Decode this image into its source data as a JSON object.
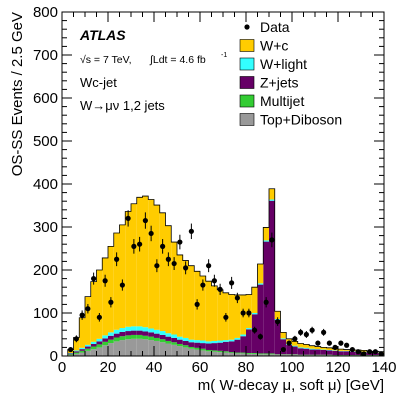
{
  "chart_data": {
    "type": "bar",
    "stacked": true,
    "histogram": true,
    "xlabel": "m( W-decay μ, soft μ) [GeV]",
    "ylabel": "OS-SS Events / 2.5 GeV",
    "xlim": [
      0,
      140
    ],
    "ylim": [
      0,
      800
    ],
    "bin_width": 2.5,
    "x_ticks": [
      "0",
      "20",
      "40",
      "60",
      "80",
      "100",
      "120",
      "140"
    ],
    "y_ticks": [
      "0",
      "100",
      "200",
      "300",
      "400",
      "500",
      "600",
      "700",
      "800"
    ],
    "annotations": {
      "experiment": "ATLAS",
      "energy": "√s = 7 TeV,",
      "lumi": "∫Ldt = 4.6 fb",
      "lumi_exp": "-1",
      "channel": "Wc-jet",
      "selection": "W→μν 1,2 jets"
    },
    "legend_position": "top-right",
    "legend": [
      {
        "label": "Data",
        "kind": "marker",
        "color": "#000000"
      },
      {
        "label": "W+c",
        "kind": "fill",
        "color": "#FFCC00"
      },
      {
        "label": "W+light",
        "kind": "fill",
        "color": "#33FFFF"
      },
      {
        "label": "Z+jets",
        "kind": "fill",
        "color": "#660066"
      },
      {
        "label": "Multijet",
        "kind": "fill",
        "color": "#33CC33"
      },
      {
        "label": "Top+Diboson",
        "kind": "fill",
        "color": "#999999"
      }
    ],
    "bins_low_edge": [
      2.5,
      5,
      7.5,
      10,
      12.5,
      15,
      17.5,
      20,
      22.5,
      25,
      27.5,
      30,
      32.5,
      35,
      37.5,
      40,
      42.5,
      45,
      47.5,
      50,
      52.5,
      55,
      57.5,
      60,
      62.5,
      65,
      67.5,
      70,
      72.5,
      75,
      77.5,
      80,
      82.5,
      85,
      87.5,
      90,
      92.5,
      95,
      97.5,
      100,
      102.5,
      105,
      107.5,
      110,
      112.5,
      115,
      117.5,
      120,
      122.5,
      125,
      127.5,
      130,
      132.5,
      135,
      137.5
    ],
    "series": [
      {
        "name": "Top+Diboson",
        "color": "#999999",
        "values": [
          2,
          5,
          8,
          12,
          16,
          20,
          25,
          30,
          34,
          37,
          39,
          40,
          40,
          39,
          37,
          35,
          32,
          29,
          26,
          23,
          20,
          17,
          15,
          13,
          11,
          10,
          9,
          8,
          7,
          6,
          6,
          5,
          5,
          4,
          4,
          4,
          3,
          3,
          3,
          3,
          2,
          2,
          2,
          2,
          2,
          2,
          1,
          1,
          1,
          1,
          1,
          1,
          1,
          1,
          1
        ]
      },
      {
        "name": "Multijet",
        "color": "#33CC33",
        "values": [
          2,
          3,
          4,
          5,
          6,
          7,
          8,
          8,
          9,
          9,
          9,
          9,
          9,
          8,
          8,
          7,
          7,
          6,
          6,
          5,
          5,
          4,
          4,
          4,
          3,
          3,
          3,
          3,
          2,
          2,
          2,
          2,
          2,
          2,
          2,
          2,
          1,
          1,
          1,
          1,
          1,
          1,
          1,
          1,
          1,
          1,
          1,
          1,
          1,
          1,
          1,
          1,
          1,
          1,
          1
        ]
      },
      {
        "name": "Z+jets",
        "color": "#660066",
        "values": [
          2,
          3,
          4,
          5,
          6,
          7,
          8,
          9,
          9,
          10,
          10,
          10,
          10,
          10,
          10,
          10,
          10,
          10,
          10,
          10,
          10,
          11,
          12,
          13,
          15,
          17,
          19,
          22,
          25,
          30,
          38,
          55,
          90,
          160,
          260,
          355,
          80,
          35,
          22,
          18,
          15,
          14,
          12,
          12,
          11,
          10,
          10,
          9,
          9,
          8,
          8,
          7,
          6,
          6,
          5
        ]
      },
      {
        "name": "W+light",
        "color": "#33FFFF",
        "values": [
          1,
          2,
          3,
          4,
          5,
          6,
          7,
          8,
          9,
          9,
          10,
          10,
          10,
          10,
          9,
          9,
          9,
          8,
          8,
          7,
          7,
          6,
          6,
          6,
          5,
          5,
          5,
          4,
          4,
          4,
          4,
          3,
          3,
          3,
          3,
          3,
          2,
          2,
          2,
          2,
          2,
          2,
          2,
          1,
          1,
          1,
          1,
          1,
          1,
          1,
          1,
          1,
          1,
          1,
          1
        ]
      },
      {
        "name": "W+c",
        "color": "#FFCC00",
        "values": [
          8,
          30,
          70,
          112,
          140,
          160,
          180,
          200,
          225,
          240,
          268,
          285,
          300,
          305,
          300,
          290,
          275,
          250,
          215,
          190,
          180,
          172,
          160,
          150,
          140,
          128,
          118,
          110,
          105,
          100,
          92,
          78,
          60,
          45,
          30,
          25,
          18,
          14,
          12,
          10,
          9,
          8,
          7,
          6,
          5,
          5,
          4,
          4,
          3,
          3,
          3,
          3,
          2,
          2,
          2
        ]
      }
    ],
    "data_points": {
      "name": "Data",
      "x": [
        3.75,
        6.25,
        8.75,
        11.25,
        13.75,
        16.25,
        18.75,
        21.25,
        23.75,
        26.25,
        28.75,
        31.25,
        33.75,
        36.25,
        38.75,
        41.25,
        43.75,
        46.25,
        48.75,
        51.25,
        53.75,
        56.25,
        58.75,
        61.25,
        63.75,
        66.25,
        68.75,
        71.25,
        73.75,
        76.25,
        78.75,
        81.25,
        83.75,
        86.25,
        88.75,
        91.25,
        93.75,
        96.25,
        98.75,
        101.25,
        103.75,
        106.25,
        108.75,
        111.25,
        113.75,
        116.25,
        118.75,
        121.25,
        123.75,
        126.25,
        128.75,
        131.25,
        133.75,
        136.25,
        138.75
      ],
      "y": [
        15,
        40,
        95,
        110,
        180,
        90,
        175,
        125,
        225,
        165,
        320,
        255,
        260,
        315,
        285,
        210,
        255,
        225,
        215,
        265,
        205,
        290,
        120,
        165,
        210,
        175,
        155,
        90,
        170,
        135,
        100,
        100,
        60,
        45,
        125,
        270,
        80,
        15,
        30,
        40,
        55,
        50,
        60,
        30,
        55,
        30,
        20,
        30,
        25,
        15,
        10,
        5,
        10,
        10,
        5
      ],
      "yerr": [
        5,
        8,
        11,
        11,
        14,
        10,
        14,
        12,
        16,
        13,
        19,
        17,
        17,
        19,
        18,
        15,
        17,
        16,
        15,
        17,
        15,
        18,
        12,
        13,
        15,
        14,
        13,
        10,
        14,
        12,
        10,
        10,
        8,
        7,
        12,
        17,
        10,
        4,
        6,
        7,
        8,
        8,
        8,
        6,
        8,
        6,
        5,
        6,
        5,
        4,
        4,
        3,
        4,
        4,
        3
      ]
    }
  }
}
